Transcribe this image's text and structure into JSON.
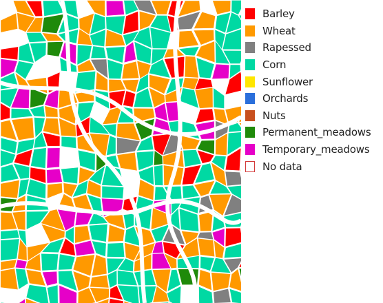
{
  "legend": {
    "items": [
      {
        "key": "barley",
        "label": "Barley",
        "color": "#ff0000"
      },
      {
        "key": "wheat",
        "label": "Wheat",
        "color": "#ff9900"
      },
      {
        "key": "rapessed",
        "label": "Rapessed",
        "color": "#808080"
      },
      {
        "key": "corn",
        "label": "Corn",
        "color": "#00d9a3"
      },
      {
        "key": "sunflower",
        "label": "Sunflower",
        "color": "#ffe600"
      },
      {
        "key": "orchards",
        "label": "Orchards",
        "color": "#2a6fdb"
      },
      {
        "key": "nuts",
        "label": "Nuts",
        "color": "#c8501e"
      },
      {
        "key": "permanent_meadows",
        "label": "Permanent_meadows",
        "color": "#1f8a0a"
      },
      {
        "key": "temporary_meadows",
        "label": "Temporary_meadows",
        "color": "#e600c8"
      },
      {
        "key": "no_data",
        "label": "No data",
        "color": "#ffffff",
        "border": "#d33a3a"
      }
    ]
  }
}
